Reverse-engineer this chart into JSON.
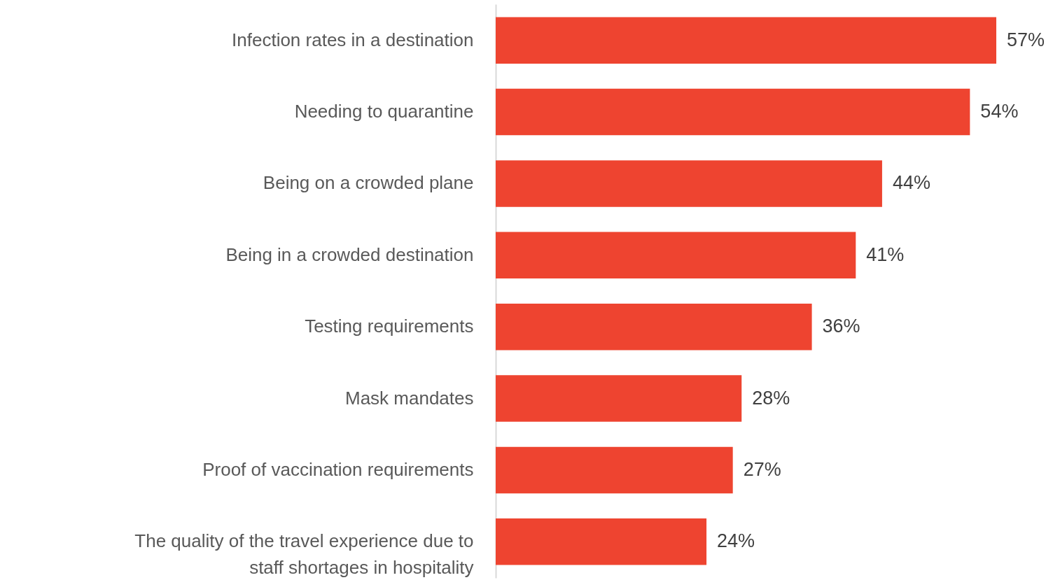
{
  "chart_data": {
    "type": "bar",
    "orientation": "horizontal",
    "categories": [
      "Infection rates in a destination",
      "Needing to quarantine",
      "Being on a crowded plane",
      "Being in a crowded destination",
      "Testing requirements",
      "Mask mandates",
      "Proof of vaccination requirements",
      "The quality of the travel experience due to staff shortages in hospitality"
    ],
    "values": [
      57,
      54,
      44,
      41,
      36,
      28,
      27,
      24
    ],
    "value_labels": [
      "57%",
      "54%",
      "44%",
      "41%",
      "36%",
      "28%",
      "27%",
      "24%"
    ],
    "color": "#ee4430",
    "grid": false
  }
}
